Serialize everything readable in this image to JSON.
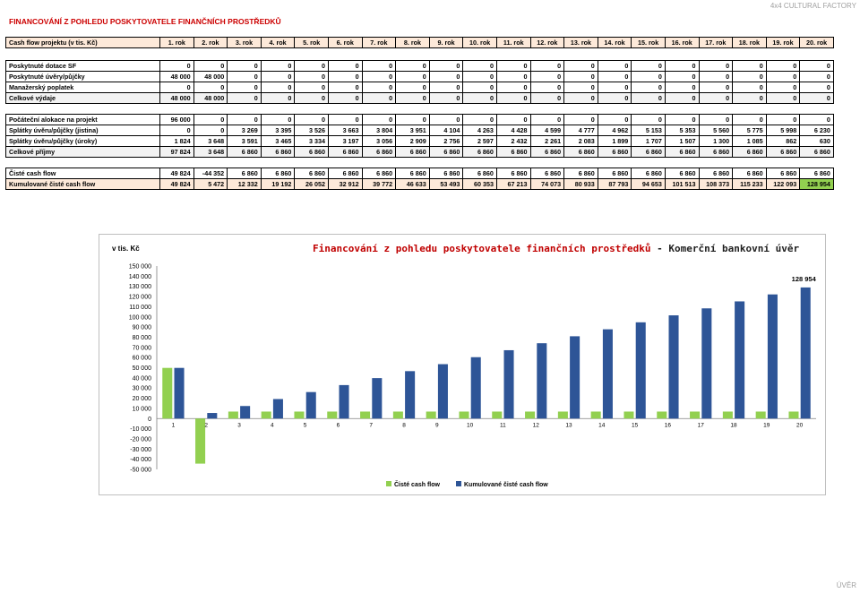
{
  "watermark": "4x4 CULTURAL FACTORY",
  "footer_mark": "ÚVĚR",
  "title": "FINANCOVÁNÍ Z POHLEDU POSKYTOVATELE FINANČNÍCH PROSTŘEDKŮ",
  "header": {
    "label": "Cash flow projektu (v tis. Kč)",
    "years": [
      "1. rok",
      "2. rok",
      "3. rok",
      "4. rok",
      "5. rok",
      "6. rok",
      "7. rok",
      "8. rok",
      "9. rok",
      "10. rok",
      "11. rok",
      "12. rok",
      "13. rok",
      "14. rok",
      "15. rok",
      "16. rok",
      "17. rok",
      "18. rok",
      "19. rok",
      "20. rok"
    ]
  },
  "block1": [
    {
      "label": "Poskytnuté dotace SF",
      "values": [
        "0",
        "0",
        "0",
        "0",
        "0",
        "0",
        "0",
        "0",
        "0",
        "0",
        "0",
        "0",
        "0",
        "0",
        "0",
        "0",
        "0",
        "0",
        "0",
        "0"
      ]
    },
    {
      "label": "Poskytnuté úvěry/půjčky",
      "values": [
        "48 000",
        "48 000",
        "0",
        "0",
        "0",
        "0",
        "0",
        "0",
        "0",
        "0",
        "0",
        "0",
        "0",
        "0",
        "0",
        "0",
        "0",
        "0",
        "0",
        "0"
      ]
    },
    {
      "label": "Manažerský poplatek",
      "values": [
        "0",
        "0",
        "0",
        "0",
        "0",
        "0",
        "0",
        "0",
        "0",
        "0",
        "0",
        "0",
        "0",
        "0",
        "0",
        "0",
        "0",
        "0",
        "0",
        "0"
      ]
    },
    {
      "label": "Celkové výdaje",
      "values": [
        "48 000",
        "48 000",
        "0",
        "0",
        "0",
        "0",
        "0",
        "0",
        "0",
        "0",
        "0",
        "0",
        "0",
        "0",
        "0",
        "0",
        "0",
        "0",
        "0",
        "0"
      ]
    }
  ],
  "block2": [
    {
      "label": "Počáteční alokace na projekt",
      "values": [
        "96 000",
        "0",
        "0",
        "0",
        "0",
        "0",
        "0",
        "0",
        "0",
        "0",
        "0",
        "0",
        "0",
        "0",
        "0",
        "0",
        "0",
        "0",
        "0",
        "0"
      ]
    },
    {
      "label": "Splátky úvěru/půjčky (jistina)",
      "values": [
        "0",
        "0",
        "3 269",
        "3 395",
        "3 526",
        "3 663",
        "3 804",
        "3 951",
        "4 104",
        "4 263",
        "4 428",
        "4 599",
        "4 777",
        "4 962",
        "5 153",
        "5 353",
        "5 560",
        "5 775",
        "5 998",
        "6 230"
      ]
    },
    {
      "label": "Splátky úvěru/půjčky (úroky)",
      "values": [
        "1 824",
        "3 648",
        "3 591",
        "3 465",
        "3 334",
        "3 197",
        "3 056",
        "2 909",
        "2 756",
        "2 597",
        "2 432",
        "2 261",
        "2 083",
        "1 899",
        "1 707",
        "1 507",
        "1 300",
        "1 085",
        "862",
        "630"
      ]
    },
    {
      "label": "Celkové příjmy",
      "values": [
        "97 824",
        "3 648",
        "6 860",
        "6 860",
        "6 860",
        "6 860",
        "6 860",
        "6 860",
        "6 860",
        "6 860",
        "6 860",
        "6 860",
        "6 860",
        "6 860",
        "6 860",
        "6 860",
        "6 860",
        "6 860",
        "6 860",
        "6 860"
      ]
    }
  ],
  "block3": [
    {
      "label": "Čisté cash flow",
      "values": [
        "49 824",
        "-44 352",
        "6 860",
        "6 860",
        "6 860",
        "6 860",
        "6 860",
        "6 860",
        "6 860",
        "6 860",
        "6 860",
        "6 860",
        "6 860",
        "6 860",
        "6 860",
        "6 860",
        "6 860",
        "6 860",
        "6 860",
        "6 860"
      ]
    },
    {
      "label": "Kumulované čisté cash flow",
      "values": [
        "49 824",
        "5 472",
        "12 332",
        "19 192",
        "26 052",
        "32 912",
        "39 772",
        "46 633",
        "53 493",
        "60 353",
        "67 213",
        "74 073",
        "80 933",
        "87 793",
        "94 653",
        "101 513",
        "108 373",
        "115 233",
        "122 093",
        "128 954"
      ]
    }
  ],
  "chart_data": {
    "type": "bar",
    "title_main": "Financování z pohledu poskytovatele finančních prostředků",
    "title_suffix": " - Komerční bankovní úvěr",
    "ylabel": "v tis. Kč",
    "categories": [
      "1",
      "2",
      "3",
      "4",
      "5",
      "6",
      "7",
      "8",
      "9",
      "10",
      "11",
      "12",
      "13",
      "14",
      "15",
      "16",
      "17",
      "18",
      "19",
      "20"
    ],
    "ylim": [
      -50000,
      150000
    ],
    "ytick_step": 10000,
    "ytick_labels": [
      "150 000",
      "140 000",
      "130 000",
      "120 000",
      "110 000",
      "100 000",
      "90 000",
      "80 000",
      "70 000",
      "60 000",
      "50 000",
      "40 000",
      "30 000",
      "20 000",
      "10 000",
      "0",
      "-10 000",
      "-20 000",
      "-30 000",
      "-40 000",
      "-50 000"
    ],
    "series": [
      {
        "name": "Čisté cash flow",
        "color": "#92d050",
        "values": [
          49824,
          -44352,
          6860,
          6860,
          6860,
          6860,
          6860,
          6860,
          6860,
          6860,
          6860,
          6860,
          6860,
          6860,
          6860,
          6860,
          6860,
          6860,
          6860,
          6860
        ]
      },
      {
        "name": "Kumulované čisté cash flow",
        "color": "#2e5597",
        "values": [
          49824,
          5472,
          12332,
          19192,
          26052,
          32912,
          39772,
          46633,
          53493,
          60353,
          67213,
          74073,
          80933,
          87793,
          94653,
          101513,
          108373,
          115233,
          122093,
          128954
        ]
      }
    ],
    "annotation": {
      "label": "128 954",
      "index": 19,
      "series": 1
    },
    "legend": "bottom"
  }
}
